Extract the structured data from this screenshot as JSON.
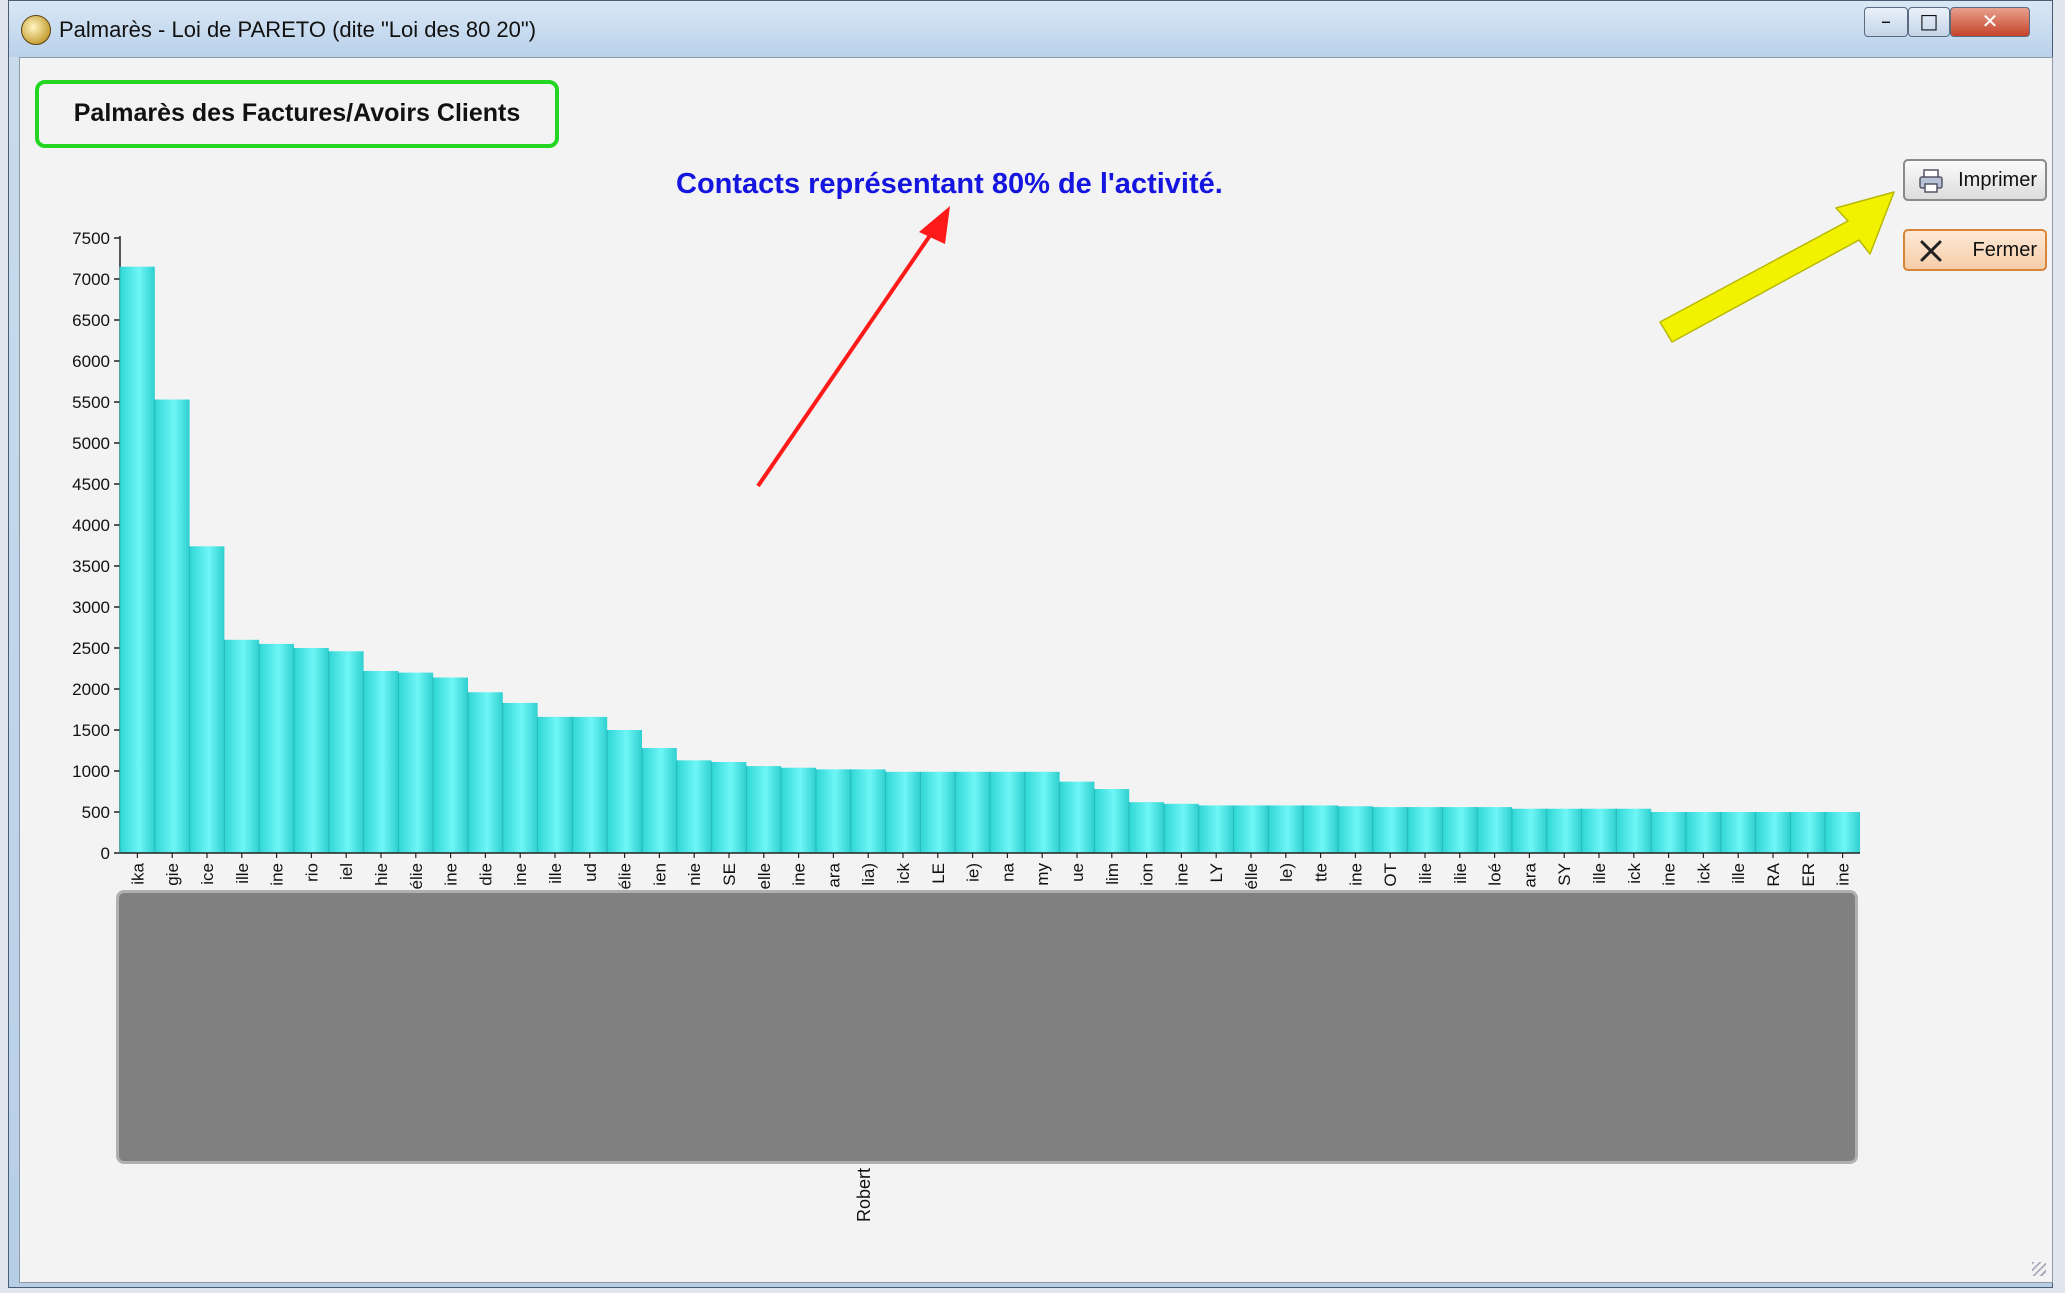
{
  "window": {
    "title": "Palmarès - Loi de PARETO (dite \"Loi des 80 20\")",
    "minimize_glyph": "–",
    "maximize_glyph": "□",
    "close_glyph": "✕"
  },
  "heading": "Palmarès des Factures/Avoirs Clients",
  "annotation": "Contacts représentant 80% de l'activité.",
  "buttons": {
    "print": {
      "label": "Imprimer",
      "icon": "printer-icon"
    },
    "close": {
      "label": "Fermer",
      "icon": "close-x-icon"
    }
  },
  "colors": {
    "bar": "#5cecec",
    "heading_border": "#22d622",
    "annotation": "#1515e0",
    "red_arrow": "#ff1a1a",
    "yellow_arrow": "#f2f200"
  },
  "chart_data": {
    "type": "bar",
    "ylim": [
      0,
      7500
    ],
    "yticks": [
      0,
      500,
      1000,
      1500,
      2000,
      2500,
      3000,
      3500,
      4000,
      4500,
      5000,
      5500,
      6000,
      6500,
      7000,
      7500
    ],
    "categories": [
      "ika",
      "gie",
      "ice",
      "ille",
      "ine",
      "rio",
      "iel",
      "hie",
      "élie",
      "ine",
      "die",
      "ine",
      "ille",
      "ud",
      "élie",
      "ien",
      "nie",
      "SE",
      "elle",
      "ine",
      "ara",
      "lia)",
      "ick",
      "LE",
      "ie)",
      "na",
      "my",
      "ue",
      "lim",
      "ion",
      "ine",
      "LY",
      "élle",
      "le)",
      "tte",
      "ine",
      "OT",
      "ilie",
      "ilie",
      "loé",
      "ara",
      "SY",
      "ille",
      "ick",
      "ine",
      "ick",
      "ille",
      "RA",
      "ER",
      "ine"
    ],
    "values": [
      7150,
      5530,
      3740,
      2600,
      2550,
      2500,
      2460,
      2220,
      2200,
      2140,
      1960,
      1830,
      1660,
      1660,
      1500,
      1280,
      1130,
      1110,
      1060,
      1040,
      1020,
      1020,
      990,
      990,
      990,
      990,
      990,
      870,
      780,
      620,
      600,
      580,
      580,
      580,
      580,
      570,
      560,
      560,
      560,
      560,
      540,
      540,
      540,
      540,
      500,
      500,
      500,
      500,
      500,
      500
    ],
    "grid": false,
    "legend": "none",
    "hidden_label_fragments": [
      "Robert"
    ]
  }
}
